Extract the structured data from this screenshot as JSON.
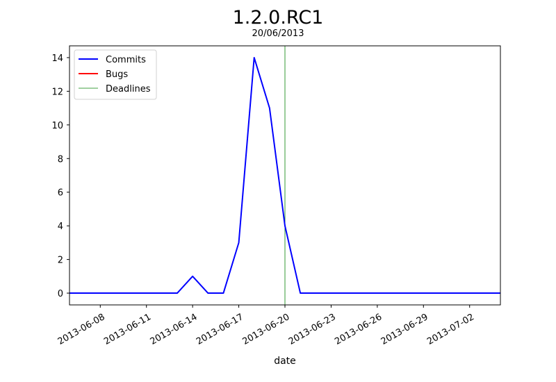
{
  "chart_data": {
    "type": "line",
    "title": "1.2.0.RC1",
    "subtitle": "20/06/2013",
    "xlabel": "date",
    "ylabel": "",
    "x_type": "date",
    "xlim": [
      "2013-06-06",
      "2013-07-04"
    ],
    "ylim": [
      -0.7,
      14.7
    ],
    "x_ticks": [
      "2013-06-08",
      "2013-06-11",
      "2013-06-14",
      "2013-06-17",
      "2013-06-20",
      "2013-06-23",
      "2013-06-26",
      "2013-06-29",
      "2013-07-02"
    ],
    "y_ticks": [
      0,
      2,
      4,
      6,
      8,
      10,
      12,
      14
    ],
    "grid": false,
    "legend_position": "top-left",
    "series": [
      {
        "name": "Commits",
        "color": "#0000ff",
        "points": [
          [
            "2013-06-06",
            0
          ],
          [
            "2013-06-13",
            0
          ],
          [
            "2013-06-14",
            1
          ],
          [
            "2013-06-15",
            0
          ],
          [
            "2013-06-16",
            0
          ],
          [
            "2013-06-17",
            3
          ],
          [
            "2013-06-18",
            14
          ],
          [
            "2013-06-19",
            11
          ],
          [
            "2013-06-20",
            4
          ],
          [
            "2013-06-21",
            0
          ],
          [
            "2013-07-04",
            0
          ]
        ]
      },
      {
        "name": "Bugs",
        "color": "#ff0000",
        "points": []
      }
    ],
    "vlines": [
      {
        "name": "Deadlines",
        "color": "#008000",
        "x": "2013-06-20"
      }
    ]
  }
}
